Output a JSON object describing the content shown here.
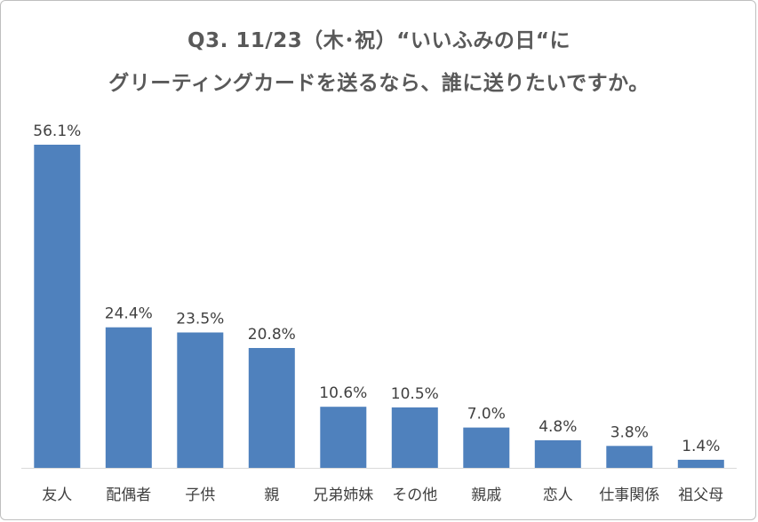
{
  "chart_data": {
    "type": "bar",
    "title_line1": "Q3.  11/23（木･祝）“いいふみの日“に",
    "title_line2": "グリーティングカードを送るなら、誰に送りたいですか。",
    "categories": [
      "友人",
      "配偶者",
      "子供",
      "親",
      "兄弟姉妹",
      "その他",
      "親戚",
      "恋人",
      "仕事関係",
      "祖父母"
    ],
    "values": [
      56.1,
      24.4,
      23.5,
      20.8,
      10.6,
      10.5,
      7.0,
      4.8,
      3.8,
      1.4
    ],
    "value_labels": [
      "56.1%",
      "24.4%",
      "23.5%",
      "20.8%",
      "10.6%",
      "10.5%",
      "7.0%",
      "4.8%",
      "3.8%",
      "1.4%"
    ],
    "ylim": [
      0,
      56.1
    ],
    "grid": false,
    "legend": "none",
    "bar_color": "#4f81bd"
  }
}
